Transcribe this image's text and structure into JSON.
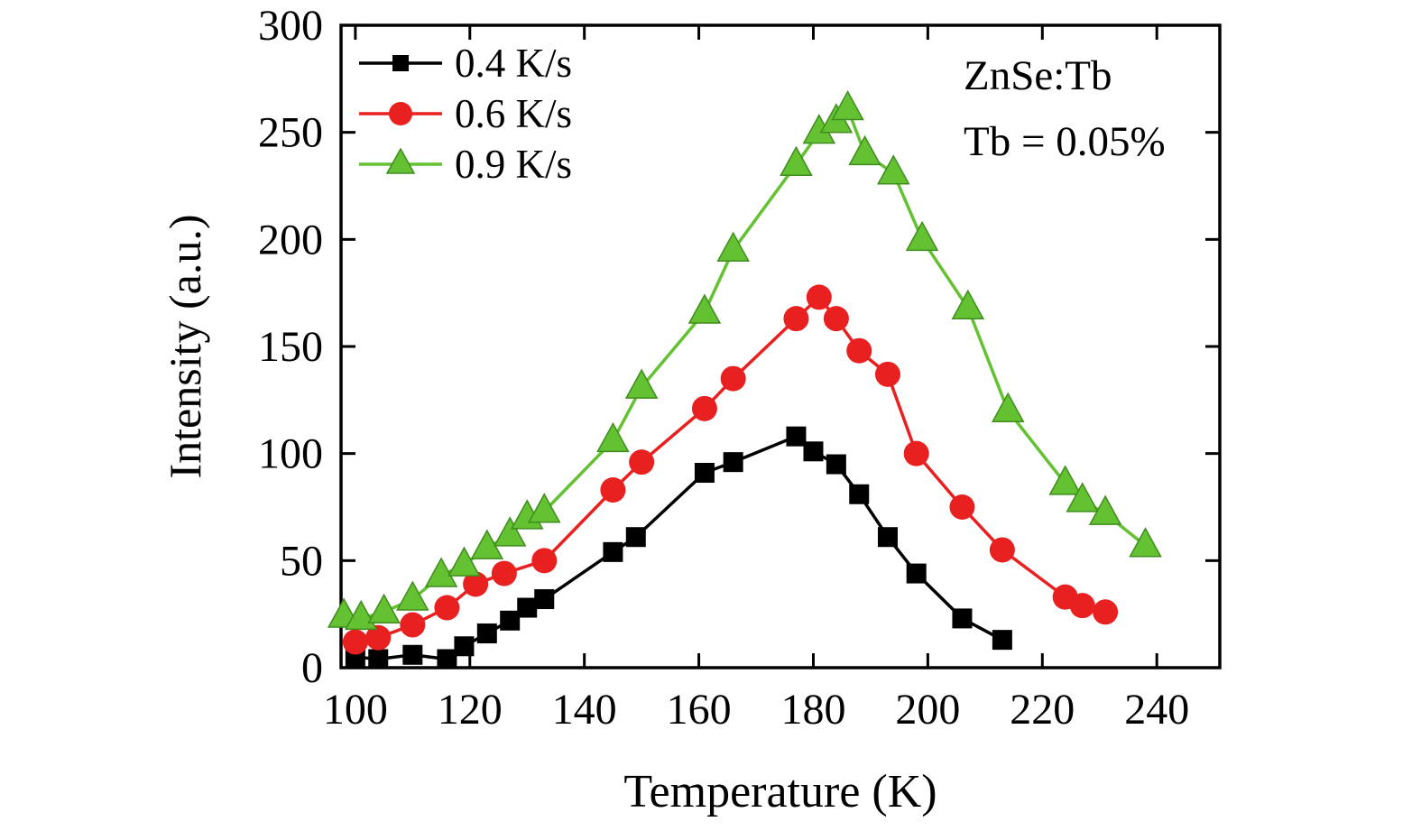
{
  "chart_data": {
    "type": "line",
    "title": "",
    "xlabel": "Temperature (K)",
    "ylabel": "Intensity (a.u.)",
    "xlim": [
      97.5,
      251
    ],
    "ylim": [
      0,
      300
    ],
    "xticks": [
      100,
      120,
      140,
      160,
      180,
      200,
      220,
      240
    ],
    "yticks": [
      0,
      50,
      100,
      150,
      200,
      250,
      300
    ],
    "grid": false,
    "legend_position": "top-left-inside",
    "annotations": [
      "ZnSe:Tb",
      "Tb = 0.05%"
    ],
    "frame_color": "#000000",
    "series": [
      {
        "name": "0.4 K/s",
        "color": "#000000",
        "marker": "square",
        "x": [
          100,
          104,
          110,
          116,
          119,
          123,
          127,
          130,
          133,
          145,
          149,
          161,
          166,
          177,
          180,
          184,
          188,
          193,
          198,
          206,
          213
        ],
        "y": [
          5,
          4,
          6,
          4,
          10,
          16,
          22,
          28,
          32,
          54,
          61,
          91,
          96,
          108,
          101,
          95,
          81,
          61,
          44,
          23,
          13
        ]
      },
      {
        "name": "0.6 K/s",
        "color": "#e8201f",
        "marker": "circle",
        "x": [
          100,
          104,
          110,
          116,
          121,
          126,
          133,
          145,
          150,
          161,
          166,
          177,
          181,
          184,
          188,
          193,
          198,
          206,
          213,
          224,
          227,
          231
        ],
        "y": [
          12,
          14,
          20,
          28,
          39,
          44,
          50,
          83,
          96,
          121,
          135,
          163,
          173,
          163,
          148,
          137,
          100,
          75,
          55,
          33,
          29,
          26
        ]
      },
      {
        "name": "0.9 K/s",
        "color": "#63c132",
        "marker": "triangle",
        "x": [
          98,
          101,
          105,
          110,
          115,
          119,
          123,
          127,
          130,
          133,
          145,
          150,
          161,
          166,
          177,
          181,
          184,
          186,
          189,
          194,
          199,
          207,
          214,
          224,
          227,
          231,
          238
        ],
        "y": [
          24,
          23,
          26,
          32,
          43,
          48,
          56,
          62,
          70,
          73,
          106,
          131,
          166,
          195,
          235,
          250,
          255,
          261,
          240,
          231,
          200,
          168,
          120,
          86,
          78,
          72,
          57
        ]
      }
    ]
  }
}
